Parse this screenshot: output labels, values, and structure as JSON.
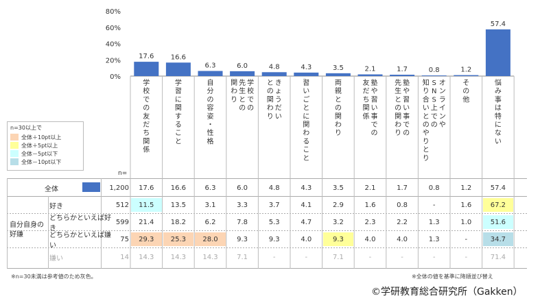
{
  "chart_data": {
    "type": "bar",
    "yticks": [
      "80%",
      "60%",
      "40%",
      "20%",
      "0%"
    ],
    "ylim": [
      0,
      80
    ],
    "categories": [
      "学校での友だち関係",
      "学習に関すること",
      "自分の容姿・性格",
      "学校での先生との関わり",
      "きょうだいとの関わり",
      "習いごとに関わること",
      "両親との関わり",
      "塾や習い事での友だち関係",
      "塾や習い事での先生との関わり",
      "オンラインやSNS上での知り合いとのやりとり",
      "その他",
      "悩み事は特にない"
    ],
    "values": [
      17.6,
      16.6,
      6.3,
      6.0,
      4.8,
      4.3,
      3.5,
      2.1,
      1.7,
      0.8,
      1.2,
      57.4
    ],
    "value_labels": [
      "17.6",
      "16.6",
      "6.3",
      "6.0",
      "4.8",
      "4.3",
      "3.5",
      "2.1",
      "1.7",
      "0.8",
      "1.2",
      "57.4"
    ],
    "bar_color": "#4472c4"
  },
  "legend": {
    "title": "n=30以上で",
    "items": [
      {
        "label": "全体＋10pt以上",
        "color": "#fcd5b4"
      },
      {
        "label": "全体＋5pt以上",
        "color": "#ffff99"
      },
      {
        "label": "全体－5pt以下",
        "color": "#ccffff"
      },
      {
        "label": "全体－10pt以下",
        "color": "#b7dee8"
      }
    ]
  },
  "n_label": "n=",
  "table": {
    "total": {
      "label": "全体",
      "n": "1,200",
      "values": [
        "17.6",
        "16.6",
        "6.3",
        "6.0",
        "4.8",
        "4.3",
        "3.5",
        "2.1",
        "1.7",
        "0.8",
        "1.2",
        "57.4"
      ]
    },
    "group_label": "自分自身の好嫌",
    "rows": [
      {
        "label": "好き",
        "n": "512",
        "values": [
          "11.5",
          "13.5",
          "3.1",
          "3.3",
          "3.7",
          "4.1",
          "2.9",
          "1.6",
          "0.8",
          "-",
          "1.6",
          "67.2"
        ],
        "highlights": [
          "#ccffff",
          "",
          "",
          "",
          "",
          "",
          "",
          "",
          "",
          "",
          "",
          "#ffff99"
        ],
        "gray": false
      },
      {
        "label": "どちらかといえば好き",
        "n": "599",
        "values": [
          "21.4",
          "18.2",
          "6.2",
          "7.8",
          "5.3",
          "4.7",
          "3.2",
          "2.3",
          "2.2",
          "1.3",
          "1.0",
          "51.6"
        ],
        "highlights": [
          "",
          "",
          "",
          "",
          "",
          "",
          "",
          "",
          "",
          "",
          "",
          "#ccffff"
        ],
        "gray": false
      },
      {
        "label": "どちらかといえば嫌い",
        "n": "75",
        "values": [
          "29.3",
          "25.3",
          "28.0",
          "9.3",
          "9.3",
          "4.0",
          "9.3",
          "4.0",
          "4.0",
          "1.3",
          "-",
          "34.7"
        ],
        "highlights": [
          "#fcd5b4",
          "#fcd5b4",
          "#fcd5b4",
          "",
          "",
          "",
          "#ffff99",
          "",
          "",
          "",
          "",
          "#b7dee8"
        ],
        "gray": false
      },
      {
        "label": "嫌い",
        "n": "14",
        "values": [
          "14.3",
          "14.3",
          "14.3",
          "7.1",
          "-",
          "-",
          "7.1",
          "-",
          "-",
          "-",
          "-",
          "71.4"
        ],
        "highlights": [
          "",
          "",
          "",
          "",
          "",
          "",
          "",
          "",
          "",
          "",
          "",
          ""
        ],
        "gray": true
      }
    ]
  },
  "notes": {
    "left": "※n=30未満は参考値のため灰色。",
    "right": "※全体の値を基準に降順並び替え"
  },
  "copyright": "©学研教育総合研究所（Gakken）"
}
